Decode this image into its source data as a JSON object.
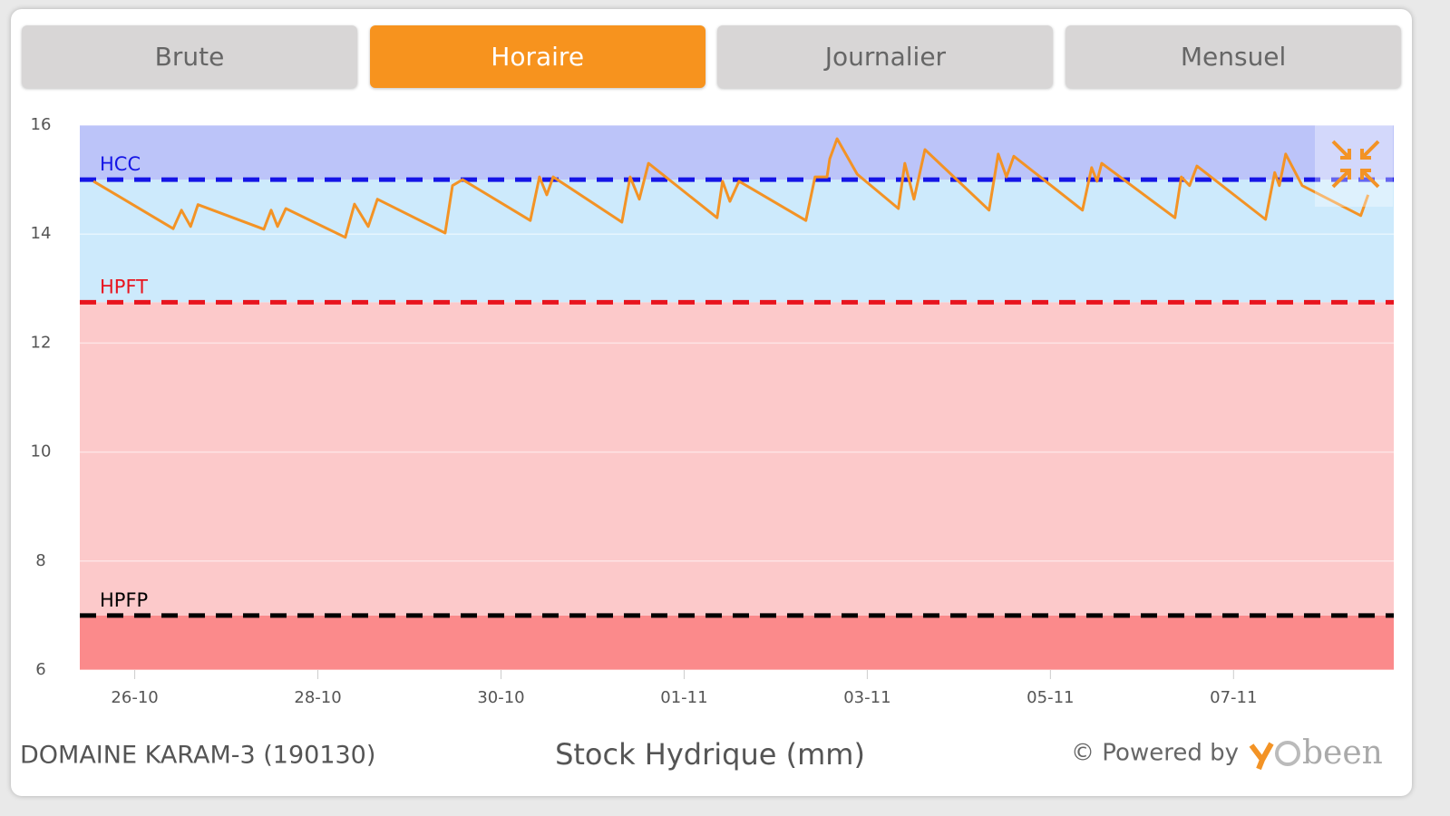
{
  "tabs": [
    {
      "label": "Brute",
      "active": false
    },
    {
      "label": "Horaire",
      "active": true
    },
    {
      "label": "Journalier",
      "active": false
    },
    {
      "label": "Mensuel",
      "active": false
    }
  ],
  "chart_data": {
    "type": "line",
    "title": "Stock Hydrique (mm)",
    "line_color": "#f39325",
    "x": [
      -0.45,
      0.42,
      0.51,
      0.61,
      0.69,
      1.41,
      1.49,
      1.56,
      1.65,
      2.3,
      2.4,
      2.55,
      2.65,
      3.39,
      3.47,
      3.58,
      4.32,
      4.42,
      4.5,
      4.57,
      5.32,
      5.41,
      5.51,
      5.61,
      6.36,
      6.42,
      6.5,
      6.6,
      7.33,
      7.43,
      7.56,
      7.59,
      7.67,
      7.89,
      8.34,
      8.41,
      8.51,
      8.63,
      9.33,
      9.43,
      9.52,
      9.6,
      10.35,
      10.45,
      10.51,
      10.56,
      11.36,
      11.43,
      11.52,
      11.6,
      12.35,
      12.45,
      12.5,
      12.57,
      12.75,
      13.39,
      13.47
    ],
    "values": [
      14.97,
      14.1,
      14.44,
      14.14,
      14.54,
      14.09,
      14.44,
      14.14,
      14.47,
      13.94,
      14.55,
      14.14,
      14.64,
      14.02,
      14.89,
      15.0,
      14.25,
      15.05,
      14.72,
      15.05,
      14.22,
      15.05,
      14.64,
      15.3,
      14.3,
      14.97,
      14.6,
      14.97,
      14.25,
      15.05,
      15.05,
      15.38,
      15.75,
      15.1,
      14.47,
      15.3,
      14.64,
      15.55,
      14.44,
      15.47,
      15.05,
      15.43,
      14.44,
      15.22,
      14.97,
      15.3,
      14.3,
      15.05,
      14.89,
      15.25,
      14.27,
      15.13,
      14.89,
      15.47,
      14.89,
      14.34,
      14.72
    ],
    "xlim": [
      -0.6,
      13.75
    ],
    "xticks": [
      {
        "value": 0,
        "label": "26-10"
      },
      {
        "value": 2,
        "label": "28-10"
      },
      {
        "value": 4,
        "label": "30-10"
      },
      {
        "value": 6,
        "label": "01-11"
      },
      {
        "value": 8,
        "label": "03-11"
      },
      {
        "value": 10,
        "label": "05-11"
      },
      {
        "value": 12,
        "label": "07-11"
      }
    ],
    "ylim": [
      6,
      16
    ],
    "yticks": [
      6,
      8,
      10,
      12,
      14,
      16
    ],
    "grid": true,
    "thresholds": [
      {
        "label": "HPFP",
        "value": 7,
        "color": "#000000",
        "zone_color": "#fb8a8b"
      },
      {
        "label": "HPFT",
        "value": 12.75,
        "color": "#e8141e",
        "zone_color": "#fcc9ca"
      },
      {
        "label": "HCC",
        "value": 15,
        "color": "#1515e6",
        "zone_color": "#cdeafc"
      }
    ],
    "top_zone_color": "#bcc4f9"
  },
  "footer": {
    "station": "DOMAINE KARAM-3 (190130)",
    "powered": "© Powered by",
    "logo": "been"
  }
}
